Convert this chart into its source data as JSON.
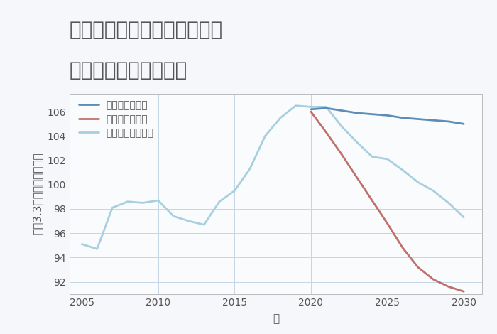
{
  "title_line1": "愛知県名古屋市天白区横町の",
  "title_line2": "中古戸建ての価格推移",
  "xlabel": "年",
  "ylabel": "坪（3.3㎡）単価（万円）",
  "background_color": "#f5f7fa",
  "plot_background_color": "#f9fbfc",
  "grid_color": "#c5d5e5",
  "ylim": [
    91.0,
    107.5
  ],
  "yticks": [
    92,
    94,
    96,
    98,
    100,
    102,
    104,
    106
  ],
  "xlim": [
    2004.2,
    2031.2
  ],
  "xticks": [
    2005,
    2010,
    2015,
    2020,
    2025,
    2030
  ],
  "good_scenario": {
    "x": [
      2020,
      2021,
      2022,
      2023,
      2024,
      2025,
      2026,
      2027,
      2028,
      2029,
      2030
    ],
    "y": [
      106.2,
      106.3,
      106.1,
      105.9,
      105.8,
      105.7,
      105.5,
      105.4,
      105.3,
      105.2,
      105.0
    ],
    "color": "#5b8db8",
    "label": "グッドシナリオ",
    "linewidth": 2.0
  },
  "bad_scenario": {
    "x": [
      2020,
      2021,
      2022,
      2023,
      2024,
      2025,
      2026,
      2027,
      2028,
      2029,
      2030
    ],
    "y": [
      106.0,
      104.3,
      102.5,
      100.6,
      98.7,
      96.8,
      94.8,
      93.2,
      92.2,
      91.6,
      91.2
    ],
    "color": "#c0706a",
    "label": "バッドシナリオ",
    "linewidth": 2.0
  },
  "normal_scenario": {
    "x": [
      2005,
      2006,
      2007,
      2008,
      2009,
      2010,
      2011,
      2012,
      2013,
      2014,
      2015,
      2016,
      2017,
      2018,
      2019,
      2020,
      2021,
      2022,
      2023,
      2024,
      2025,
      2026,
      2027,
      2028,
      2029,
      2030
    ],
    "y": [
      95.1,
      94.7,
      98.1,
      98.6,
      98.5,
      98.7,
      97.4,
      97.0,
      96.7,
      98.6,
      99.5,
      101.3,
      104.0,
      105.5,
      106.5,
      106.4,
      106.4,
      104.8,
      103.5,
      102.3,
      102.1,
      101.2,
      100.2,
      99.5,
      98.5,
      97.3
    ],
    "color": "#a8cfe0",
    "label": "ノーマルシナリオ",
    "linewidth": 2.0
  },
  "title_fontsize": 20,
  "axis_label_fontsize": 11,
  "tick_fontsize": 10,
  "legend_fontsize": 10,
  "title_color": "#555555",
  "text_color": "#555555"
}
